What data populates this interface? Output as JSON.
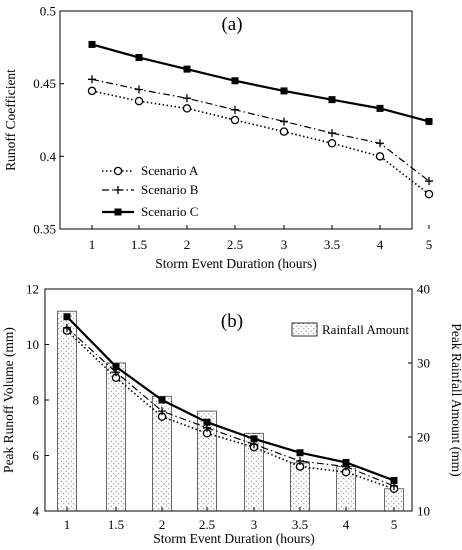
{
  "chart_data": [
    {
      "type": "line",
      "panel_label": "(a)",
      "categories": [
        "1",
        "1.5",
        "2",
        "2.5",
        "3",
        "3.5",
        "4",
        "5"
      ],
      "xlabel": "Storm Event Duration (hours)",
      "ylabel": "Runoff Coefficient",
      "ylim": [
        0.35,
        0.5
      ],
      "yticks": [
        "0.35",
        "0.4",
        "0.45",
        "0.5"
      ],
      "grid": false,
      "legend_position": "bottom-left",
      "series": [
        {
          "name": "Scenario A",
          "marker": "open-circle",
          "line": "dotted",
          "values": [
            0.445,
            0.438,
            0.433,
            0.425,
            0.417,
            0.409,
            0.4,
            0.374
          ]
        },
        {
          "name": "Scenario B",
          "marker": "plus",
          "line": "dash-dot",
          "values": [
            0.453,
            0.446,
            0.44,
            0.432,
            0.424,
            0.416,
            0.409,
            0.383
          ]
        },
        {
          "name": "Scenario C",
          "marker": "filled-square",
          "line": "solid",
          "values": [
            0.477,
            0.468,
            0.46,
            0.452,
            0.445,
            0.439,
            0.433,
            0.424
          ]
        }
      ]
    },
    {
      "type": "bar",
      "panel_label": "(b)",
      "categories": [
        "1",
        "1.5",
        "2",
        "2.5",
        "3",
        "3.5",
        "4",
        "5"
      ],
      "xlabel": "Storm Event Duration (hours)",
      "ylabel": "Peak Runoff Volume (mm)",
      "ylim": [
        4,
        12
      ],
      "yticks": [
        "4",
        "6",
        "8",
        "10",
        "12"
      ],
      "y2label": "Peak Rainfall Amount (mm)",
      "y2lim": [
        10,
        40
      ],
      "y2ticks": [
        "10",
        "20",
        "30",
        "40"
      ],
      "grid": false,
      "legend_position": "top-right",
      "bars": {
        "name": "Rainfall Amount",
        "axis": "right",
        "values": [
          37,
          30,
          25.5,
          23.5,
          20.5,
          16.5,
          16,
          13
        ]
      },
      "series": [
        {
          "name": "Scenario A",
          "marker": "open-circle",
          "line": "dotted",
          "values": [
            10.5,
            8.8,
            7.4,
            6.8,
            6.3,
            5.6,
            5.4,
            4.8
          ]
        },
        {
          "name": "Scenario B",
          "marker": "plus",
          "line": "dash-dot",
          "values": [
            10.6,
            9.0,
            7.6,
            7.0,
            6.4,
            5.8,
            5.6,
            4.9
          ]
        },
        {
          "name": "Scenario C",
          "marker": "filled-square",
          "line": "solid",
          "values": [
            11.0,
            9.2,
            8.0,
            7.2,
            6.6,
            6.1,
            5.75,
            5.1
          ]
        }
      ]
    }
  ]
}
